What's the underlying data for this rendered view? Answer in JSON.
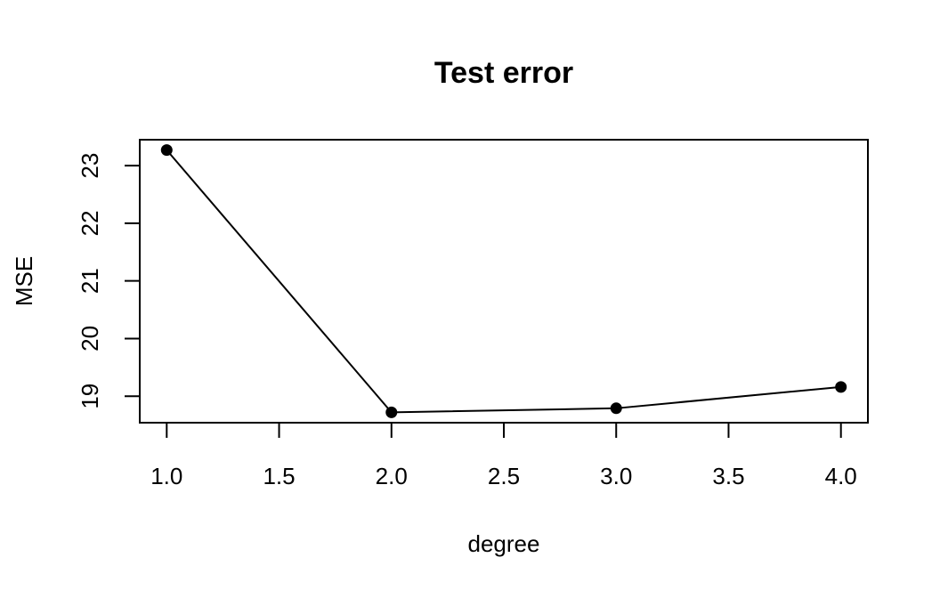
{
  "chart_data": {
    "type": "line",
    "title": "Test error",
    "xlabel": "degree",
    "ylabel": "MSE",
    "x": [
      1,
      2,
      3,
      4
    ],
    "series": [
      {
        "values": [
          23.27,
          18.72,
          18.79,
          19.16
        ]
      }
    ],
    "xlim": [
      0.88,
      4.12
    ],
    "ylim": [
      18.54,
      23.45
    ],
    "xticks": [
      1.0,
      1.5,
      2.0,
      2.5,
      3.0,
      3.5,
      4.0
    ],
    "xtick_labels": [
      "1.0",
      "1.5",
      "2.0",
      "2.5",
      "3.0",
      "3.5",
      "4.0"
    ],
    "yticks": [
      19,
      20,
      21,
      22,
      23
    ],
    "ytick_labels": [
      "19",
      "20",
      "21",
      "22",
      "23"
    ],
    "markers": "filled-circle",
    "grid": false,
    "legend": "none"
  }
}
